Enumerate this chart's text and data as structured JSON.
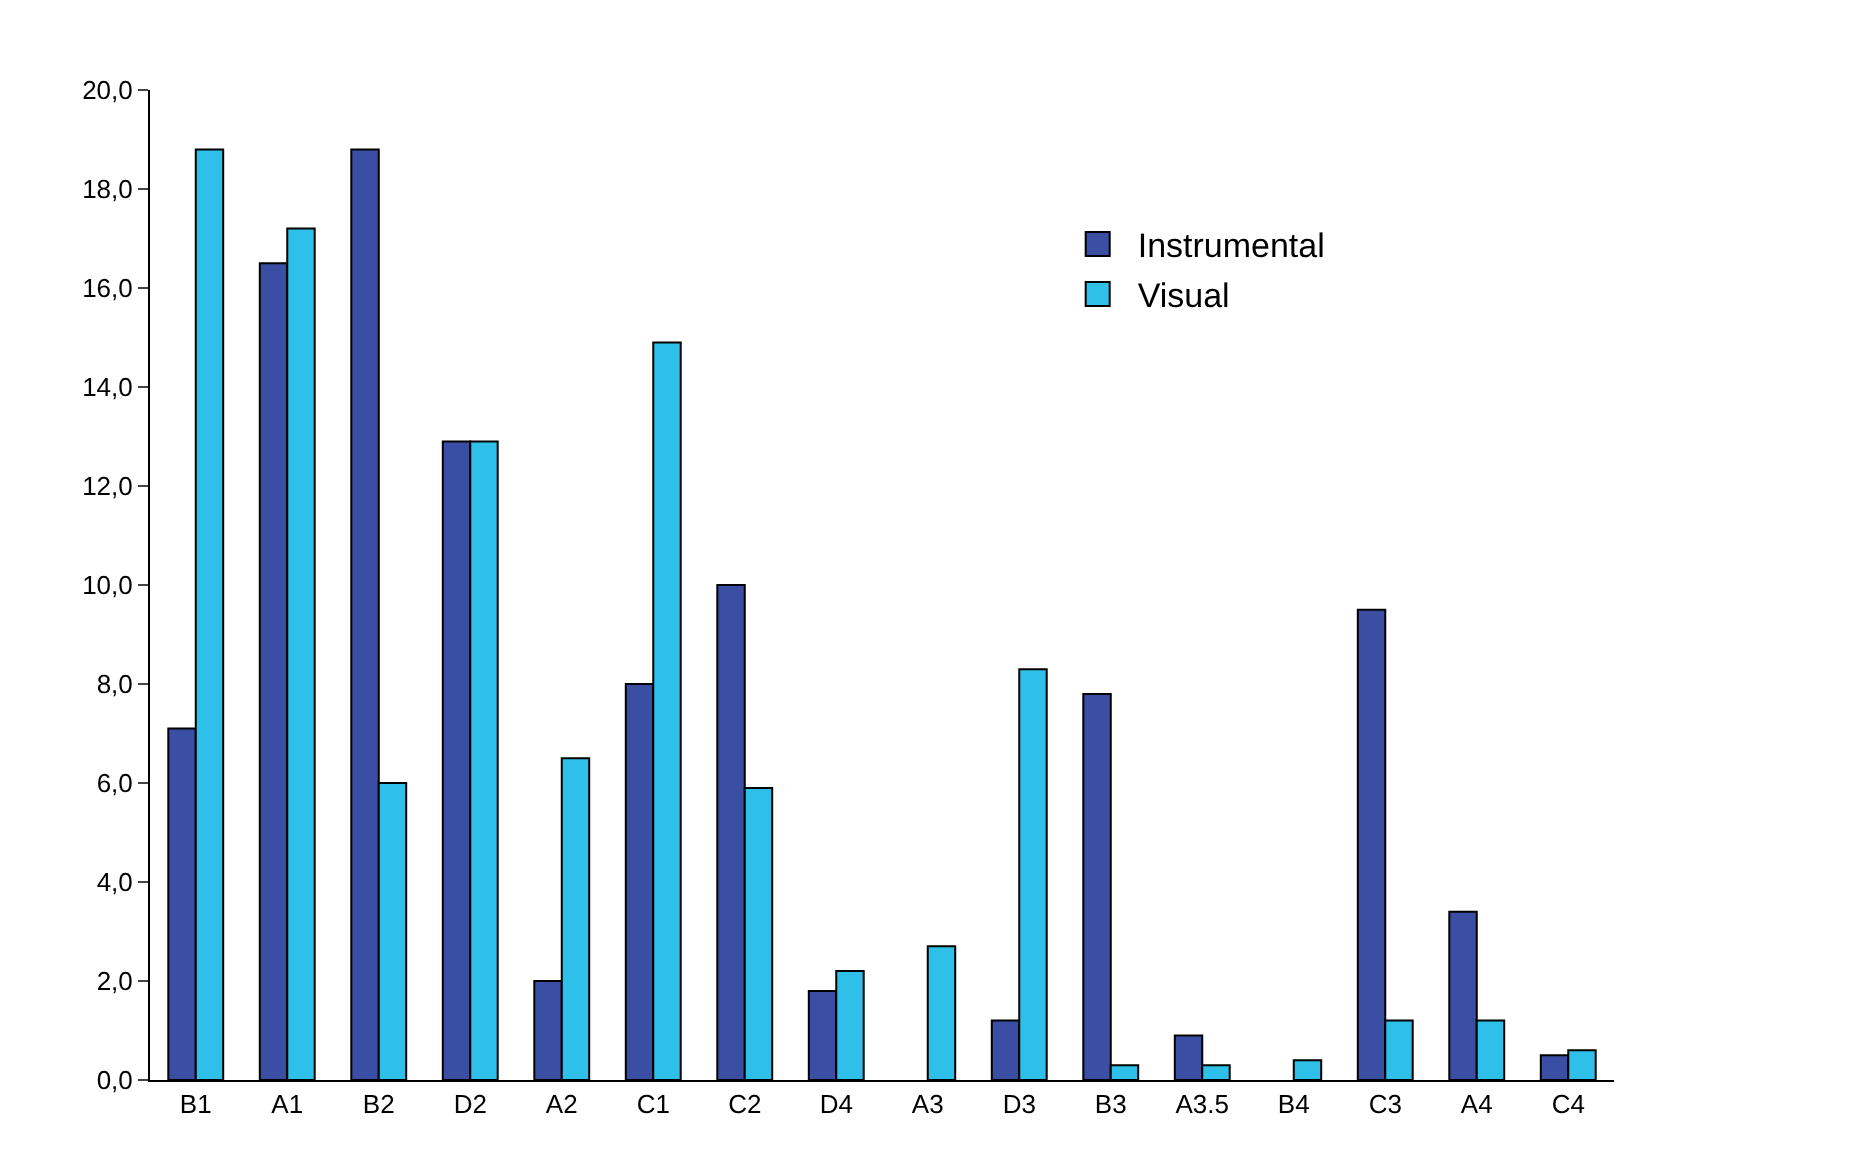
{
  "chart_data": {
    "type": "bar",
    "categories": [
      "B1",
      "A1",
      "B2",
      "D2",
      "A2",
      "C1",
      "C2",
      "D4",
      "A3",
      "D3",
      "B3",
      "A3.5",
      "B4",
      "C3",
      "A4",
      "C4"
    ],
    "series": [
      {
        "name": "Instrumental",
        "color": "#3a4ea3",
        "values": [
          7.1,
          16.5,
          18.8,
          12.9,
          2.0,
          8.0,
          10.0,
          1.8,
          null,
          1.2,
          7.8,
          0.9,
          null,
          9.5,
          3.4,
          0.5
        ]
      },
      {
        "name": "Visual",
        "color": "#2ec0e8",
        "values": [
          18.8,
          17.2,
          6.0,
          12.9,
          6.5,
          14.9,
          5.9,
          2.2,
          2.7,
          8.3,
          0.3,
          0.3,
          0.4,
          1.2,
          1.2,
          0.6
        ]
      }
    ],
    "ylim": [
      0,
      20
    ],
    "yticks": [
      {
        "value": 0,
        "label": "0,0"
      },
      {
        "value": 2,
        "label": "2,0"
      },
      {
        "value": 4,
        "label": "4,0"
      },
      {
        "value": 6,
        "label": "6,0"
      },
      {
        "value": 8,
        "label": "8,0"
      },
      {
        "value": 10,
        "label": "10,0"
      },
      {
        "value": 12,
        "label": "12,0"
      },
      {
        "value": 14,
        "label": "14,0"
      },
      {
        "value": 16,
        "label": "16,0"
      },
      {
        "value": 18,
        "label": "18,0"
      },
      {
        "value": 20,
        "label": "20,0"
      }
    ],
    "legend": "top right"
  }
}
